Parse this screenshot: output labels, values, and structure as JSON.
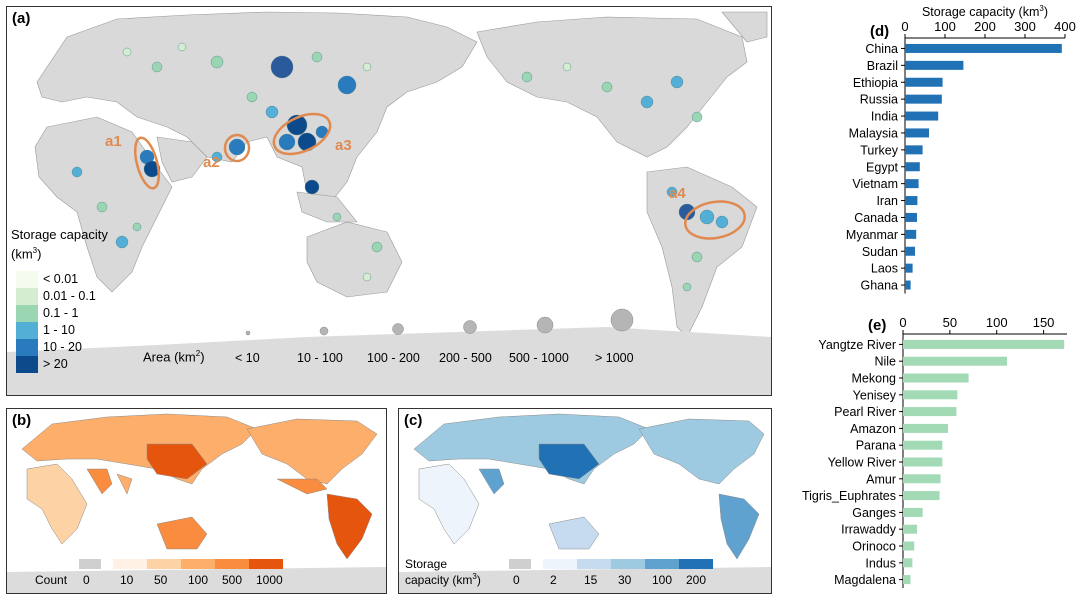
{
  "panel_a": {
    "label": "(a)",
    "regions": [
      "a1",
      "a2",
      "a3",
      "a4"
    ],
    "legend_title": "Storage capacity (km",
    "legend_title_sup": "3",
    "legend_title_end": ")",
    "legend_items": [
      {
        "label": "< 0.01",
        "color": "#f5fbef"
      },
      {
        "label": "0.01 - 0.1",
        "color": "#d4edd0"
      },
      {
        "label": "0.1 - 1",
        "color": "#9bd6b3"
      },
      {
        "label": "1 - 10",
        "color": "#54afd6"
      },
      {
        "label": "10 - 20",
        "color": "#2a7bbd"
      },
      {
        "label": "> 20",
        "color": "#0d4a8c"
      }
    ],
    "area_title": "Area (km",
    "area_title_sup": "2",
    "area_title_end": ")",
    "area_items": [
      "< 10",
      "10 - 100",
      "100 - 200",
      "200 - 500",
      "500 - 1000",
      "> 1000"
    ]
  },
  "panel_b": {
    "label": "(b)",
    "legend_title": "Count",
    "ticks": [
      "0",
      "10",
      "50",
      "100",
      "500",
      "1000"
    ],
    "colors": [
      "#cfcfcf",
      "#fff1e3",
      "#fdd2a5",
      "#fdae6b",
      "#f98c3e",
      "#e6550d"
    ]
  },
  "panel_c": {
    "label": "(c)",
    "legend_title_line1": "Storage",
    "legend_title_line2": "capacity (km",
    "legend_title_sup": "3",
    "legend_title_end": ")",
    "ticks": [
      "0",
      "2",
      "15",
      "30",
      "100",
      "200"
    ],
    "colors": [
      "#cfcfcf",
      "#eef4fb",
      "#c6dbef",
      "#9ecae1",
      "#5fa2d0",
      "#2171b5"
    ]
  },
  "chart_data": [
    {
      "type": "bar",
      "panel": "(d)",
      "orientation": "horizontal",
      "xlabel": "Storage capacity (km",
      "xlabel_sup": "3",
      "xlabel_end": ")",
      "xlim": [
        0,
        400
      ],
      "xticks": [
        0,
        100,
        200,
        300,
        400
      ],
      "color": "#2171b5",
      "categories": [
        "China",
        "Brazil",
        "Ethiopia",
        "Russia",
        "India",
        "Malaysia",
        "Turkey",
        "Egypt",
        "Vietnam",
        "Iran",
        "Canada",
        "Myanmar",
        "Sudan",
        "Laos",
        "Ghana"
      ],
      "values": [
        392,
        146,
        94,
        92,
        83,
        60,
        44,
        37,
        34,
        31,
        30,
        28,
        25,
        19,
        14
      ]
    },
    {
      "type": "bar",
      "panel": "(e)",
      "orientation": "horizontal",
      "xlim": [
        0,
        175
      ],
      "xticks": [
        0,
        50,
        100,
        150
      ],
      "color": "#a1dab4",
      "categories": [
        "Yangtze River",
        "Nile",
        "Mekong",
        "Yenisey",
        "Pearl River",
        "Amazon",
        "Parana",
        "Yellow River",
        "Amur",
        "Tigris_Euphrates",
        "Ganges",
        "Irrawaddy",
        "Orinoco",
        "Indus",
        "Magdalena"
      ],
      "values": [
        172,
        111,
        70,
        58,
        57,
        48,
        42,
        42,
        40,
        39,
        21,
        15,
        12,
        10,
        8
      ]
    }
  ]
}
